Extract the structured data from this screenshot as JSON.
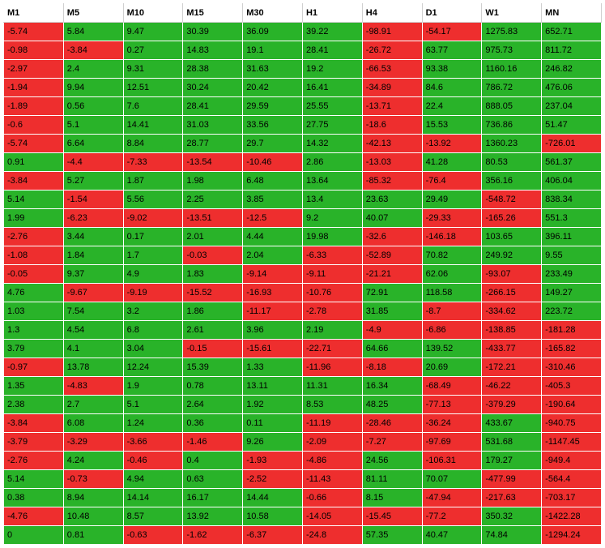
{
  "table": {
    "columns": [
      "M1",
      "M5",
      "M10",
      "M15",
      "M30",
      "H1",
      "H4",
      "D1",
      "W1",
      "MN"
    ],
    "pos_color": "#29b329",
    "neg_color": "#ee2e2e",
    "header_bg": "#ffffff",
    "border_color": "#ffffff",
    "font_size": 11,
    "rows": [
      [
        -5.74,
        5.84,
        9.47,
        30.39,
        36.09,
        39.22,
        -98.91,
        -54.17,
        1275.83,
        652.71
      ],
      [
        -0.98,
        -3.84,
        0.27,
        14.83,
        19.1,
        28.41,
        -26.72,
        63.77,
        975.73,
        811.72
      ],
      [
        -2.97,
        2.4,
        9.31,
        28.38,
        31.63,
        19.2,
        -66.53,
        93.38,
        1160.16,
        246.82
      ],
      [
        -1.94,
        9.94,
        12.51,
        30.24,
        20.42,
        16.41,
        -34.89,
        84.6,
        786.72,
        476.06
      ],
      [
        -1.89,
        0.56,
        7.6,
        28.41,
        29.59,
        25.55,
        -13.71,
        22.4,
        888.05,
        237.04
      ],
      [
        -0.6,
        5.1,
        14.41,
        31.03,
        33.56,
        27.75,
        -18.6,
        15.53,
        736.86,
        51.47
      ],
      [
        -5.74,
        6.64,
        8.84,
        28.77,
        29.7,
        14.32,
        -42.13,
        -13.92,
        1360.23,
        -726.01
      ],
      [
        0.91,
        -4.4,
        -7.33,
        -13.54,
        -10.46,
        2.86,
        -13.03,
        41.28,
        80.53,
        561.37
      ],
      [
        -3.84,
        5.27,
        1.87,
        1.98,
        6.48,
        13.64,
        -85.32,
        -76.4,
        356.16,
        406.04
      ],
      [
        5.14,
        -1.54,
        5.56,
        2.25,
        3.85,
        13.4,
        23.63,
        29.49,
        -548.72,
        838.34
      ],
      [
        1.99,
        -6.23,
        -9.02,
        -13.51,
        -12.5,
        9.2,
        40.07,
        -29.33,
        -165.26,
        551.3
      ],
      [
        -2.76,
        3.44,
        0.17,
        2.01,
        4.44,
        19.98,
        -32.6,
        -146.18,
        103.65,
        396.11
      ],
      [
        -1.08,
        1.84,
        1.7,
        -0.03,
        2.04,
        -6.33,
        -52.89,
        70.82,
        249.92,
        9.55
      ],
      [
        -0.05,
        9.37,
        4.9,
        1.83,
        -9.14,
        -9.11,
        -21.21,
        62.06,
        -93.07,
        233.49
      ],
      [
        4.76,
        -9.67,
        -9.19,
        -15.52,
        -16.93,
        -10.76,
        72.91,
        118.58,
        -266.15,
        149.27
      ],
      [
        1.03,
        7.54,
        3.2,
        1.86,
        -11.17,
        -2.78,
        31.85,
        -8.7,
        -334.62,
        223.72
      ],
      [
        1.3,
        4.54,
        6.8,
        2.61,
        3.96,
        2.19,
        -4.9,
        -6.86,
        -138.85,
        -181.28
      ],
      [
        3.79,
        4.1,
        3.04,
        -0.15,
        -15.61,
        -22.71,
        64.66,
        139.52,
        -433.77,
        -165.82
      ],
      [
        -0.97,
        13.78,
        12.24,
        15.39,
        1.33,
        -11.96,
        -8.18,
        20.69,
        -172.21,
        -310.46
      ],
      [
        1.35,
        -4.83,
        1.9,
        0.78,
        13.11,
        11.31,
        16.34,
        -68.49,
        -46.22,
        -405.3
      ],
      [
        2.38,
        2.7,
        5.1,
        2.64,
        1.92,
        8.53,
        48.25,
        -77.13,
        -379.29,
        -190.64
      ],
      [
        -3.84,
        6.08,
        1.24,
        0.36,
        0.11,
        -11.19,
        -28.46,
        -36.24,
        433.67,
        -940.75
      ],
      [
        -3.79,
        -3.29,
        -3.66,
        -1.46,
        9.26,
        -2.09,
        -7.27,
        -97.69,
        531.68,
        -1147.45
      ],
      [
        -2.76,
        4.24,
        -0.46,
        0.4,
        -1.93,
        -4.86,
        24.56,
        -106.31,
        179.27,
        -949.4
      ],
      [
        5.14,
        -0.73,
        4.94,
        0.63,
        -2.52,
        -11.43,
        81.11,
        70.07,
        -477.99,
        -564.4
      ],
      [
        0.38,
        8.94,
        14.14,
        16.17,
        14.44,
        -0.66,
        8.15,
        -47.94,
        -217.63,
        -703.17
      ],
      [
        -4.76,
        10.48,
        8.57,
        13.92,
        10.58,
        -14.05,
        -15.45,
        -77.2,
        350.32,
        -1422.28
      ],
      [
        0,
        0.81,
        -0.63,
        -1.62,
        -6.37,
        -24.8,
        57.35,
        40.47,
        74.84,
        -1294.24
      ]
    ]
  }
}
